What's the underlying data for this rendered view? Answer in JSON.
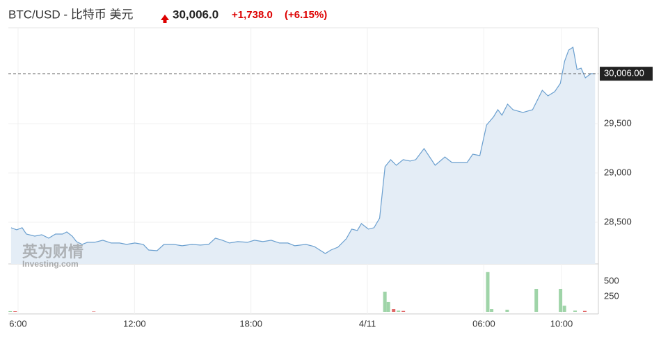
{
  "header": {
    "title": "BTC/USD - 比特币 美元",
    "price": "30,006.0",
    "change": "+1,738.0",
    "change_pct": "(+6.15%)"
  },
  "watermark": {
    "cn": "英为财情",
    "en": "Investing.com"
  },
  "chart_data": {
    "type": "area",
    "x": [
      -0.36,
      -0.07,
      0.21,
      0.43,
      0.86,
      1.22,
      1.58,
      1.93,
      2.29,
      2.51,
      2.79,
      3.01,
      3.3,
      3.58,
      3.94,
      4.37,
      4.8,
      5.23,
      5.59,
      6.02,
      6.45,
      6.73,
      7.16,
      7.52,
      8.02,
      8.45,
      8.96,
      9.39,
      9.82,
      10.17,
      10.53,
      10.89,
      11.32,
      11.82,
      12.18,
      12.61,
      13.04,
      13.47,
      13.9,
      14.26,
      14.83,
      15.26,
      15.83,
      16.12,
      16.48,
      16.91,
      17.19,
      17.48,
      17.69,
      18.05,
      18.34,
      18.63,
      18.91,
      19.2,
      19.49,
      19.84,
      20.2,
      20.49,
      20.92,
      21.49,
      21.99,
      22.35,
      23.14,
      23.43,
      23.79,
      24.14,
      24.5,
      24.72,
      24.93,
      25.22,
      25.5,
      26.01,
      26.51,
      27.01,
      27.3,
      27.65,
      27.94,
      28.16,
      28.37,
      28.59,
      28.8,
      29.01,
      29.23,
      29.52,
      29.73
    ],
    "series": [
      {
        "name": "BTC/USD",
        "color": "#6a9fcf",
        "values": [
          28444,
          28423,
          28444,
          28380,
          28359,
          28373,
          28338,
          28380,
          28380,
          28401,
          28359,
          28303,
          28275,
          28296,
          28296,
          28317,
          28289,
          28289,
          28275,
          28289,
          28275,
          28218,
          28211,
          28275,
          28275,
          28261,
          28275,
          28268,
          28275,
          28338,
          28317,
          28289,
          28303,
          28296,
          28317,
          28303,
          28317,
          28289,
          28289,
          28261,
          28275,
          28254,
          28183,
          28218,
          28247,
          28331,
          28430,
          28416,
          28486,
          28430,
          28444,
          28542,
          29063,
          29134,
          29077,
          29134,
          29120,
          29134,
          29247,
          29077,
          29162,
          29106,
          29106,
          29190,
          29176,
          29486,
          29570,
          29641,
          29585,
          29697,
          29641,
          29613,
          29641,
          29838,
          29782,
          29824,
          29908,
          30134,
          30246,
          30275,
          30049,
          30063,
          29965,
          30007,
          30006
        ]
      }
    ],
    "xlim": [
      -0.5,
      29.9
    ],
    "xticks": [
      {
        "value": 0,
        "label": "6:00"
      },
      {
        "value": 6,
        "label": "12:00"
      },
      {
        "value": 12,
        "label": "18:00"
      },
      {
        "value": 18,
        "label": "4/11"
      },
      {
        "value": 24,
        "label": "06:00"
      },
      {
        "value": 28,
        "label": "10:00"
      }
    ],
    "ylim": [
      28077,
      30472
    ],
    "yticks": [
      {
        "value": 28500,
        "label": "28,500"
      },
      {
        "value": 29000,
        "label": "29,000"
      },
      {
        "value": 29500,
        "label": "29,500"
      }
    ],
    "current": {
      "value": 30006,
      "label": "30,006.00"
    },
    "grid": true,
    "volume": {
      "x": [
        -0.4,
        -0.15,
        3.9,
        18.9,
        19.08,
        19.35,
        19.6,
        19.85,
        24.2,
        24.4,
        25.2,
        26.7,
        27.95,
        28.15,
        28.7,
        29.2
      ],
      "values": [
        12,
        10,
        6,
        330,
        160,
        45,
        20,
        15,
        650,
        45,
        35,
        375,
        375,
        100,
        20,
        15
      ],
      "colors": [
        "#9fd4a8",
        "#e06666",
        "#e06666",
        "#9fd4a8",
        "#9fd4a8",
        "#e06666",
        "#9fd4a8",
        "#e06666",
        "#9fd4a8",
        "#9fd4a8",
        "#9fd4a8",
        "#9fd4a8",
        "#9fd4a8",
        "#9fd4a8",
        "#9fd4a8",
        "#e06666"
      ],
      "ylim": [
        0,
        784
      ],
      "yticks": [
        250,
        500
      ]
    }
  }
}
